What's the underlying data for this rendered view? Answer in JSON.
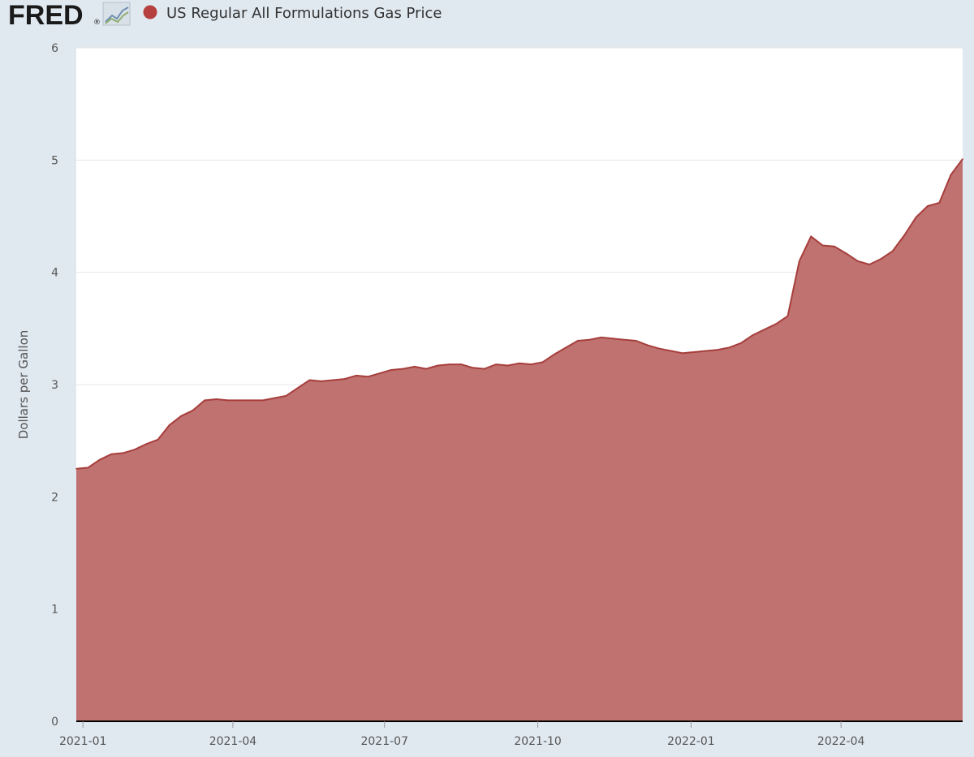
{
  "header": {
    "logo_text": "FRED",
    "logo_registered": "®",
    "logo_icon": "line-chart-icon"
  },
  "legend": {
    "label": "US Regular All Formulations Gas Price",
    "marker_color": "#b5403f"
  },
  "colors": {
    "fill": "#bf7270",
    "line": "#a63e3c",
    "background": "#e1e9f0",
    "plot_background": "#ffffff",
    "grid": "#e6e6e6"
  },
  "chart_data": {
    "type": "area",
    "title": "",
    "xlabel": "",
    "ylabel": "Dollars per Gallon",
    "ylim": [
      0,
      6
    ],
    "yticks": [
      0,
      1,
      2,
      3,
      4,
      5,
      6
    ],
    "xticks": [
      "2021-01",
      "2021-04",
      "2021-07",
      "2021-10",
      "2022-01",
      "2022-04"
    ],
    "xlim": [
      "2020-12-28",
      "2022-06-13"
    ],
    "grid": true,
    "legend_position": "top-left",
    "series": [
      {
        "name": "US Regular All Formulations Gas Price",
        "x": [
          "2020-12-28",
          "2021-01-04",
          "2021-01-11",
          "2021-01-18",
          "2021-01-25",
          "2021-02-01",
          "2021-02-08",
          "2021-02-15",
          "2021-02-22",
          "2021-03-01",
          "2021-03-08",
          "2021-03-15",
          "2021-03-22",
          "2021-03-29",
          "2021-04-05",
          "2021-04-12",
          "2021-04-19",
          "2021-04-26",
          "2021-05-03",
          "2021-05-10",
          "2021-05-17",
          "2021-05-24",
          "2021-05-31",
          "2021-06-07",
          "2021-06-14",
          "2021-06-21",
          "2021-06-28",
          "2021-07-05",
          "2021-07-12",
          "2021-07-19",
          "2021-07-26",
          "2021-08-02",
          "2021-08-09",
          "2021-08-16",
          "2021-08-23",
          "2021-08-30",
          "2021-09-06",
          "2021-09-13",
          "2021-09-20",
          "2021-09-27",
          "2021-10-04",
          "2021-10-11",
          "2021-10-18",
          "2021-10-25",
          "2021-11-01",
          "2021-11-08",
          "2021-11-15",
          "2021-11-22",
          "2021-11-29",
          "2021-12-06",
          "2021-12-13",
          "2021-12-20",
          "2021-12-27",
          "2022-01-03",
          "2022-01-10",
          "2022-01-17",
          "2022-01-24",
          "2022-01-31",
          "2022-02-07",
          "2022-02-14",
          "2022-02-21",
          "2022-02-28",
          "2022-03-07",
          "2022-03-14",
          "2022-03-21",
          "2022-03-28",
          "2022-04-04",
          "2022-04-11",
          "2022-04-18",
          "2022-04-25",
          "2022-05-02",
          "2022-05-09",
          "2022-05-16",
          "2022-05-23",
          "2022-05-30",
          "2022-06-06",
          "2022-06-13"
        ],
        "values": [
          2.25,
          2.26,
          2.33,
          2.38,
          2.39,
          2.42,
          2.47,
          2.51,
          2.64,
          2.72,
          2.77,
          2.86,
          2.87,
          2.86,
          2.86,
          2.86,
          2.86,
          2.88,
          2.9,
          2.97,
          3.04,
          3.03,
          3.04,
          3.05,
          3.08,
          3.07,
          3.1,
          3.13,
          3.14,
          3.16,
          3.14,
          3.17,
          3.18,
          3.18,
          3.15,
          3.14,
          3.18,
          3.17,
          3.19,
          3.18,
          3.2,
          3.27,
          3.33,
          3.39,
          3.4,
          3.42,
          3.41,
          3.4,
          3.39,
          3.35,
          3.32,
          3.3,
          3.28,
          3.29,
          3.3,
          3.31,
          3.33,
          3.37,
          3.44,
          3.49,
          3.54,
          3.61,
          4.1,
          4.32,
          4.24,
          4.23,
          4.17,
          4.1,
          4.07,
          4.12,
          4.19,
          4.33,
          4.49,
          4.59,
          4.62,
          4.87,
          5.01
        ]
      }
    ]
  }
}
